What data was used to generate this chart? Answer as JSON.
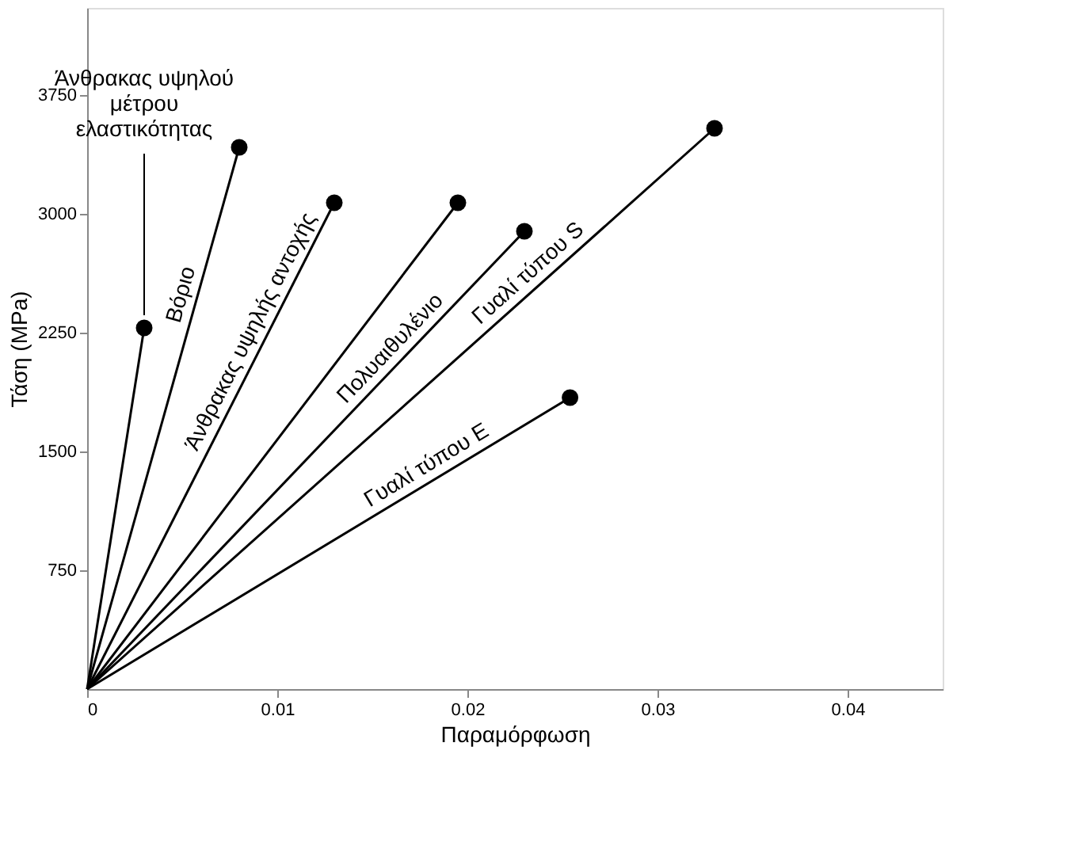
{
  "chart_data": {
    "type": "line",
    "xlabel": "Παραμόρφωση",
    "ylabel": "Τάση (MPa)",
    "xlim": [
      0,
      0.045
    ],
    "xticks": [
      0,
      0.01,
      0.02,
      0.03,
      0.04
    ],
    "ylim": [
      0,
      4300
    ],
    "yticks": [
      750,
      1500,
      2250,
      3000,
      3750
    ],
    "grid": false,
    "marker": "circle",
    "line_style": "solid",
    "series": [
      {
        "name": "Άνθρακας υψηλού μέτρου ελαστικότητας",
        "color": "#000000",
        "x": [
          0,
          0.003
        ],
        "values": [
          0,
          2280
        ]
      },
      {
        "name": "Βόριο",
        "color": "#000000",
        "x": [
          0,
          0.008
        ],
        "values": [
          0,
          3420
        ]
      },
      {
        "name": "Άνθρακας υψηλής αντοχής",
        "color": "#000000",
        "x": [
          0,
          0.013
        ],
        "values": [
          0,
          3070
        ]
      },
      {
        "color": "#000000",
        "x": [
          0,
          0.0195
        ],
        "values": [
          0,
          3070
        ]
      },
      {
        "name": "Πολυαιθυλένιο",
        "color": "#000000",
        "x": [
          0,
          0.023
        ],
        "values": [
          0,
          2890
        ]
      },
      {
        "name": "Γυαλί τύπου S",
        "color": "#000000",
        "x": [
          0,
          0.033
        ],
        "values": [
          0,
          3540
        ]
      },
      {
        "name": "Γυαλί τύπου Ε",
        "color": "#000000",
        "x": [
          0,
          0.0254
        ],
        "values": [
          0,
          1840
        ]
      }
    ]
  }
}
